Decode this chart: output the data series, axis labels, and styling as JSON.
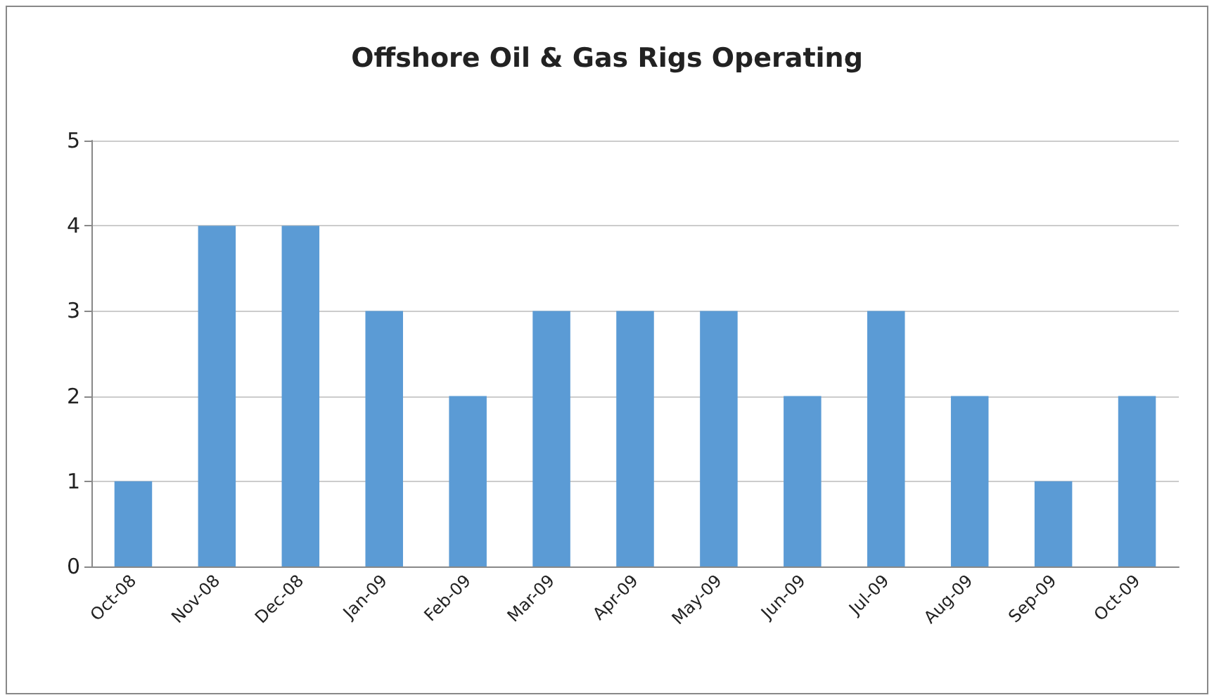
{
  "chart_data": {
    "type": "bar",
    "title": "Offshore Oil & Gas Rigs Operating",
    "categories": [
      "Oct-08",
      "Nov-08",
      "Dec-08",
      "Jan-09",
      "Feb-09",
      "Mar-09",
      "Apr-09",
      "May-09",
      "Jun-09",
      "Jul-09",
      "Aug-09",
      "Sep-09",
      "Oct-09"
    ],
    "values": [
      1,
      4,
      4,
      3,
      2,
      3,
      3,
      3,
      2,
      3,
      2,
      1,
      2
    ],
    "color": "#5b9bd5",
    "ylim": [
      0,
      5
    ],
    "yticks": [
      0,
      1,
      2,
      3,
      4,
      5
    ],
    "grid": "y"
  }
}
